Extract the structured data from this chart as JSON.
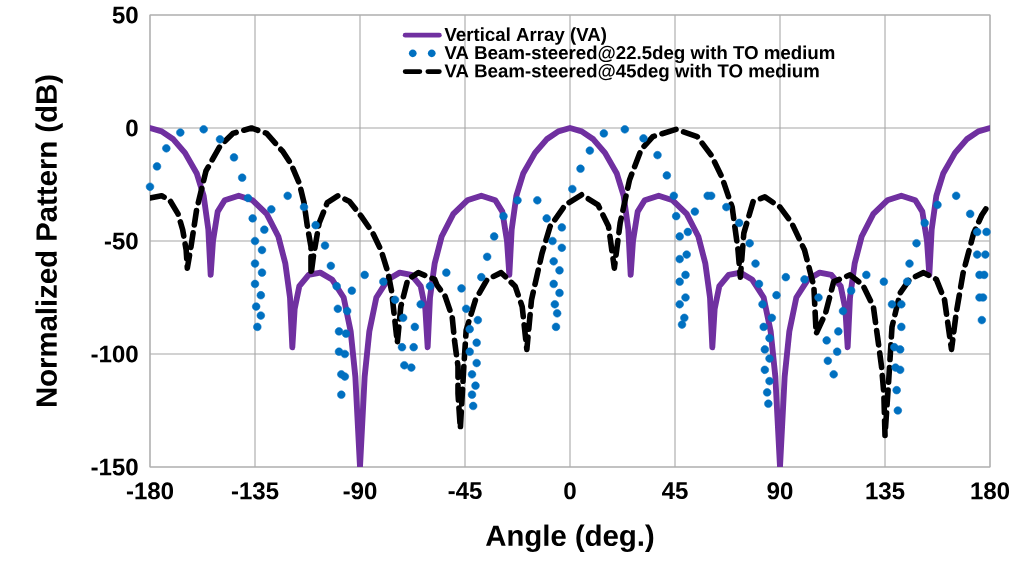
{
  "chart_data": {
    "type": "line",
    "xlabel": "Angle (deg.)",
    "ylabel": "Normalized  Pattern (dB)",
    "xlim": [
      -180,
      180
    ],
    "ylim": [
      -150,
      50
    ],
    "xticks": [
      -180,
      -135,
      -90,
      -45,
      0,
      45,
      90,
      135,
      180
    ],
    "yticks": [
      -150,
      -100,
      -50,
      0,
      50
    ],
    "grid": true,
    "legend": "top",
    "series": [
      {
        "name": "Vertical Array (VA)",
        "type": "line",
        "line_style": "solid",
        "marker": "none",
        "color": "#7030a0",
        "x": [
          -180,
          -175,
          -170,
          -165,
          -160,
          -157,
          -155,
          -154,
          -153,
          -151,
          -148,
          -142,
          -136,
          -130,
          -125,
          -122,
          -120,
          -119,
          -118,
          -116,
          -112,
          -107,
          -102,
          -97,
          -94,
          -92,
          -90,
          -88,
          -86,
          -83,
          -78,
          -73,
          -68,
          -64,
          -62,
          -61,
          -60,
          -58,
          -55,
          -50,
          -44,
          -38,
          -32,
          -29,
          -27,
          -26,
          -25,
          -23,
          -20,
          -15,
          -10,
          -5,
          0,
          5,
          10,
          15,
          20,
          23,
          25,
          26,
          27,
          29,
          32,
          38,
          44,
          50,
          55,
          58,
          60,
          61,
          62,
          64,
          68,
          73,
          78,
          83,
          86,
          88,
          90,
          92,
          94,
          97,
          102,
          107,
          112,
          116,
          118,
          119,
          120,
          122,
          125,
          130,
          136,
          142,
          148,
          151,
          153,
          154,
          155,
          157,
          160,
          165,
          170,
          175,
          180
        ],
        "values": [
          0,
          -1.5,
          -5,
          -11,
          -20,
          -30,
          -45,
          -65,
          -50,
          -37,
          -32,
          -30,
          -32,
          -38,
          -48,
          -60,
          -75,
          -97,
          -80,
          -70,
          -65,
          -64,
          -67,
          -75,
          -90,
          -110,
          -150,
          -110,
          -90,
          -75,
          -67,
          -64,
          -65,
          -70,
          -80,
          -97,
          -75,
          -60,
          -48,
          -38,
          -32,
          -30,
          -32,
          -37,
          -50,
          -65,
          -45,
          -30,
          -20,
          -11,
          -5,
          -1.5,
          0,
          -1.5,
          -5,
          -11,
          -20,
          -30,
          -45,
          -65,
          -50,
          -37,
          -32,
          -30,
          -32,
          -38,
          -48,
          -60,
          -75,
          -97,
          -80,
          -70,
          -65,
          -64,
          -67,
          -75,
          -90,
          -110,
          -150,
          -110,
          -90,
          -75,
          -67,
          -64,
          -65,
          -70,
          -80,
          -97,
          -75,
          -60,
          -48,
          -38,
          -32,
          -30,
          -32,
          -37,
          -50,
          -65,
          -45,
          -30,
          -20,
          -11,
          -5,
          -1.5,
          0
        ]
      },
      {
        "name": "VA Beam-steered@22.5deg with TO medium",
        "type": "scatter",
        "marker": "circle",
        "color": "#0070c0",
        "x": [
          -180,
          -177,
          -173,
          -167,
          -157,
          -150,
          -144,
          -140.5,
          -138,
          -136,
          -135,
          -135,
          -135,
          -134.5,
          -134,
          -131,
          -132,
          -132,
          -132.5,
          -132.5,
          -128,
          -121,
          -114,
          -109,
          -105,
          -102.5,
          -100,
          -93.5,
          -99.5,
          -95.5,
          -99,
          -96,
          -99,
          -96.5,
          -98,
          -96.5,
          -98,
          -88,
          -80,
          -75,
          -71.5,
          -72,
          -67,
          -71,
          -68,
          -64,
          -66.5,
          -60,
          -53,
          -46.5,
          -44.5,
          -39.5,
          -43,
          -40,
          -43,
          -40,
          -42,
          -40.5,
          -42,
          -41.5,
          -38,
          -35.5,
          -32.5,
          -28.5,
          -22.5,
          -14,
          -10,
          -3.5,
          -7.5,
          -3.5,
          -7,
          -4.5,
          -7,
          -4.5,
          -6.5,
          -5.5,
          -6,
          1,
          4.5,
          8.5,
          14.5,
          23.5,
          31.5,
          37.5,
          41.5,
          44.5,
          45.5,
          50.5,
          47,
          50,
          47,
          49.5,
          47,
          49.5,
          47,
          49,
          48,
          53.5,
          59,
          60.5,
          67,
          72.5,
          77,
          79.5,
          81,
          88.5,
          82.5,
          86.5,
          83,
          85.5,
          83.5,
          85.5,
          83.5,
          85.5,
          84.5,
          85,
          92.5,
          100.5,
          106.5,
          110,
          114.5,
          110.5,
          113,
          115,
          117,
          120.5,
          127,
          134.5,
          138,
          142,
          142,
          139,
          141.5,
          139.5,
          141.5,
          140,
          140.5,
          144.5,
          145.5,
          148.5,
          152,
          157.5,
          165.5,
          171.5,
          174.5,
          178.5,
          174.5,
          178,
          175.5,
          177.5,
          175.5,
          177,
          176.5
        ],
        "values": [
          -26,
          -17,
          -9,
          -2,
          -0.6,
          -5,
          -13,
          -22,
          -31,
          -40,
          -50,
          -60,
          -69,
          -79,
          -88,
          -45,
          -54,
          -64,
          -74,
          -83,
          -36,
          -30,
          -35,
          -43,
          -52,
          -61,
          -70,
          -72,
          -80,
          -81,
          -90,
          -91,
          -99,
          -100,
          -109,
          -110,
          -118,
          -65,
          -68,
          -76,
          -84,
          -97,
          -97,
          -105,
          -106,
          -78,
          -88,
          -70,
          -64,
          -71,
          -80,
          -85,
          -89,
          -95,
          -99,
          -104,
          -109,
          -114,
          -118,
          -123,
          -66,
          -57,
          -48,
          -39,
          -32,
          -32,
          -40,
          -44,
          -50,
          -53,
          -59,
          -63,
          -69,
          -73,
          -78,
          -82,
          -88,
          -27,
          -18,
          -10,
          -2.4,
          -0.6,
          -4.6,
          -12,
          -21,
          -30,
          -39,
          -46,
          -48,
          -56,
          -58,
          -65,
          -68,
          -75,
          -78,
          -84,
          -87,
          -37,
          -30,
          -30,
          -35,
          -42,
          -51,
          -60,
          -69,
          -74,
          -78,
          -84,
          -88,
          -93,
          -98,
          -102,
          -107,
          -112,
          -117,
          -122,
          -66,
          -67,
          -75,
          -94,
          -99,
          -103,
          -109,
          -90,
          -81,
          -72,
          -65,
          -68,
          -78,
          -78,
          -88,
          -97,
          -98,
          -106,
          -107,
          -116,
          -125,
          -68,
          -60,
          -51,
          -42,
          -34,
          -30,
          -38,
          -46,
          -46,
          -56,
          -56,
          -65,
          -65,
          -75,
          -75,
          -85
        ]
      },
      {
        "name": "VA Beam-steered@45deg with TO medium",
        "type": "line",
        "line_style": "dashed",
        "marker": "none",
        "color": "#000000",
        "x": [
          -180,
          -175,
          -171.5,
          -168,
          -166,
          -164.5,
          -164,
          -162.5,
          -160,
          -156,
          -150,
          -144.5,
          -136.5,
          -130,
          -123,
          -119.5,
          -116,
          -114,
          -112.5,
          -111,
          -111,
          -110,
          -107.5,
          -104,
          -99.5,
          -94.5,
          -89.5,
          -84.5,
          -81,
          -78,
          -76.5,
          -74,
          -72.5,
          -69.5,
          -65,
          -58,
          -57,
          -53.5,
          -50.5,
          -49.5,
          -48,
          -48,
          -47,
          -45.5,
          -44.5,
          -40.5,
          -35.5,
          -29.5,
          -23.5,
          -20.5,
          -18.5,
          -16.5,
          -12,
          -8.5,
          -2,
          5,
          12,
          16.5,
          19,
          21.5,
          25.5,
          30.5,
          35.5,
          45.5,
          54.5,
          60.5,
          65,
          69.5,
          72,
          73,
          74.5,
          78.5,
          83.5,
          90,
          95,
          100.5,
          104.5,
          105.5,
          109.5,
          113,
          120,
          125.5,
          130,
          132,
          133.5,
          134.5,
          135,
          136.5,
          138,
          141.5,
          145.5,
          151.5,
          157,
          160.5,
          163.5,
          165.5,
          168.5,
          173,
          176.5,
          180
        ],
        "values": [
          -31,
          -30,
          -32,
          -38,
          -45,
          -54,
          -62,
          -53,
          -36,
          -19,
          -8,
          -2.4,
          0,
          -2.4,
          -10.5,
          -16,
          -24.5,
          -33,
          -44,
          -52.5,
          -65,
          -57,
          -42,
          -33,
          -30,
          -32.5,
          -39,
          -46.5,
          -54,
          -64,
          -72,
          -95,
          -79,
          -67,
          -64,
          -67,
          -69.5,
          -74.5,
          -83.5,
          -94,
          -105.5,
          -117.5,
          -133,
          -105.5,
          -89.5,
          -76,
          -67,
          -64,
          -70,
          -79,
          -98,
          -76,
          -55.5,
          -43.5,
          -34,
          -29.5,
          -34,
          -43.5,
          -62,
          -42,
          -23,
          -9.5,
          -3.8,
          -0.6,
          -3.8,
          -12,
          -21.5,
          -35,
          -54,
          -66,
          -46.5,
          -32.5,
          -30.5,
          -35,
          -42,
          -54,
          -70,
          -91,
          -82,
          -68,
          -65,
          -69.5,
          -79,
          -94,
          -105.5,
          -117.5,
          -136,
          -113,
          -88,
          -73,
          -67,
          -64,
          -67,
          -76,
          -98,
          -82,
          -64,
          -46.5,
          -38.5,
          -33
        ]
      }
    ]
  }
}
